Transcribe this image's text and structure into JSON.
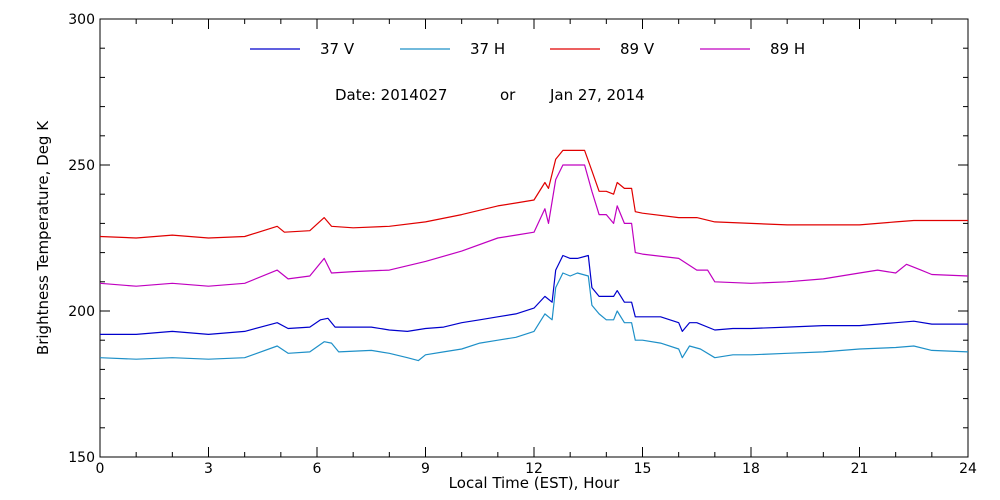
{
  "chart_data": {
    "type": "line",
    "title": "",
    "date_note": {
      "date_label": "Date: 2014027",
      "or_label": "or",
      "date_text": "Jan 27, 2014"
    },
    "xlabel": "Local Time (EST), Hour",
    "ylabel": "Brightness Temperature, Deg K",
    "xlim": [
      0,
      24
    ],
    "ylim": [
      150,
      300
    ],
    "x_ticks": [
      "0",
      "3",
      "6",
      "9",
      "12",
      "15",
      "18",
      "21",
      "24"
    ],
    "y_ticks": [
      "150",
      "200",
      "250",
      "300"
    ],
    "grid": false,
    "legend_position": "top",
    "series": [
      {
        "name": "37 V",
        "color": "#0000cc",
        "points": [
          [
            0,
            192
          ],
          [
            1,
            192
          ],
          [
            2,
            193
          ],
          [
            3,
            192
          ],
          [
            4,
            193
          ],
          [
            4.9,
            196
          ],
          [
            5.2,
            194
          ],
          [
            5.8,
            194.5
          ],
          [
            6.1,
            197
          ],
          [
            6.3,
            197.5
          ],
          [
            6.5,
            194.5
          ],
          [
            7.5,
            194.5
          ],
          [
            8,
            193.5
          ],
          [
            8.5,
            193
          ],
          [
            9,
            194
          ],
          [
            9.5,
            194.5
          ],
          [
            10,
            196
          ],
          [
            10.5,
            197
          ],
          [
            11,
            198
          ],
          [
            11.5,
            199
          ],
          [
            12,
            201
          ],
          [
            12.3,
            205
          ],
          [
            12.5,
            203
          ],
          [
            12.6,
            214
          ],
          [
            12.8,
            219
          ],
          [
            13,
            218
          ],
          [
            13.2,
            218
          ],
          [
            13.5,
            219
          ],
          [
            13.6,
            208
          ],
          [
            13.8,
            205
          ],
          [
            14,
            205
          ],
          [
            14.2,
            205
          ],
          [
            14.3,
            207
          ],
          [
            14.5,
            203
          ],
          [
            14.7,
            203
          ],
          [
            14.8,
            198
          ],
          [
            15,
            198
          ],
          [
            15.5,
            198
          ],
          [
            16,
            196
          ],
          [
            16.1,
            193
          ],
          [
            16.3,
            196
          ],
          [
            16.5,
            196
          ],
          [
            17,
            193.5
          ],
          [
            17.5,
            194
          ],
          [
            18,
            194
          ],
          [
            19,
            194.5
          ],
          [
            20,
            195
          ],
          [
            21,
            195
          ],
          [
            22,
            196
          ],
          [
            22.5,
            196.5
          ],
          [
            23,
            195.5
          ],
          [
            24,
            195.5
          ]
        ]
      },
      {
        "name": "37 H",
        "color": "#1e90c8",
        "points": [
          [
            0,
            184
          ],
          [
            1,
            183.5
          ],
          [
            2,
            184
          ],
          [
            3,
            183.5
          ],
          [
            4,
            184
          ],
          [
            4.9,
            188
          ],
          [
            5.2,
            185.5
          ],
          [
            5.8,
            186
          ],
          [
            6.2,
            189.5
          ],
          [
            6.4,
            189
          ],
          [
            6.6,
            186
          ],
          [
            7.5,
            186.5
          ],
          [
            8,
            185.5
          ],
          [
            8.5,
            184
          ],
          [
            8.8,
            183
          ],
          [
            9,
            185
          ],
          [
            9.5,
            186
          ],
          [
            10,
            187
          ],
          [
            10.5,
            189
          ],
          [
            11,
            190
          ],
          [
            11.5,
            191
          ],
          [
            12,
            193
          ],
          [
            12.3,
            199
          ],
          [
            12.5,
            197
          ],
          [
            12.6,
            208
          ],
          [
            12.8,
            213
          ],
          [
            13,
            212
          ],
          [
            13.2,
            213
          ],
          [
            13.5,
            212
          ],
          [
            13.6,
            202
          ],
          [
            13.8,
            199
          ],
          [
            14,
            197
          ],
          [
            14.2,
            197
          ],
          [
            14.3,
            200
          ],
          [
            14.5,
            196
          ],
          [
            14.7,
            196
          ],
          [
            14.8,
            190
          ],
          [
            15,
            190
          ],
          [
            15.5,
            189
          ],
          [
            16,
            187
          ],
          [
            16.1,
            184
          ],
          [
            16.3,
            188
          ],
          [
            16.6,
            187
          ],
          [
            17,
            184
          ],
          [
            17.5,
            185
          ],
          [
            18,
            185
          ],
          [
            19,
            185.5
          ],
          [
            20,
            186
          ],
          [
            21,
            187
          ],
          [
            22,
            187.5
          ],
          [
            22.5,
            188
          ],
          [
            23,
            186.5
          ],
          [
            24,
            186
          ]
        ]
      },
      {
        "name": "89 V",
        "color": "#e00000",
        "points": [
          [
            0,
            225.5
          ],
          [
            1,
            225
          ],
          [
            2,
            226
          ],
          [
            3,
            225
          ],
          [
            4,
            225.5
          ],
          [
            4.9,
            229
          ],
          [
            5.1,
            227
          ],
          [
            5.8,
            227.5
          ],
          [
            6.2,
            232
          ],
          [
            6.4,
            229
          ],
          [
            7,
            228.5
          ],
          [
            8,
            229
          ],
          [
            9,
            230.5
          ],
          [
            10,
            233
          ],
          [
            11,
            236
          ],
          [
            11.5,
            237
          ],
          [
            12,
            238
          ],
          [
            12.3,
            244
          ],
          [
            12.4,
            242
          ],
          [
            12.6,
            252
          ],
          [
            12.8,
            255
          ],
          [
            13,
            255
          ],
          [
            13.4,
            255
          ],
          [
            13.6,
            248
          ],
          [
            13.8,
            241
          ],
          [
            14,
            241
          ],
          [
            14.2,
            240
          ],
          [
            14.3,
            244
          ],
          [
            14.5,
            242
          ],
          [
            14.7,
            242
          ],
          [
            14.8,
            234
          ],
          [
            15,
            233.5
          ],
          [
            16,
            232
          ],
          [
            16.5,
            232
          ],
          [
            17,
            230.5
          ],
          [
            18,
            230
          ],
          [
            19,
            229.5
          ],
          [
            20,
            229.5
          ],
          [
            21,
            229.5
          ],
          [
            22,
            230.5
          ],
          [
            22.5,
            231
          ],
          [
            23,
            231
          ],
          [
            24,
            231
          ]
        ]
      },
      {
        "name": "89 H",
        "color": "#c000c0",
        "points": [
          [
            0,
            209.5
          ],
          [
            1,
            208.5
          ],
          [
            2,
            209.5
          ],
          [
            3,
            208.5
          ],
          [
            4,
            209.5
          ],
          [
            4.9,
            214
          ],
          [
            5.2,
            211
          ],
          [
            5.8,
            212
          ],
          [
            6.2,
            218
          ],
          [
            6.4,
            213
          ],
          [
            7,
            213.5
          ],
          [
            8,
            214
          ],
          [
            9,
            217
          ],
          [
            10,
            220.5
          ],
          [
            11,
            225
          ],
          [
            11.5,
            226
          ],
          [
            12,
            227
          ],
          [
            12.3,
            235
          ],
          [
            12.4,
            230
          ],
          [
            12.6,
            245
          ],
          [
            12.8,
            250
          ],
          [
            13,
            250
          ],
          [
            13.4,
            250
          ],
          [
            13.6,
            241
          ],
          [
            13.8,
            233
          ],
          [
            14,
            233
          ],
          [
            14.2,
            230
          ],
          [
            14.3,
            236
          ],
          [
            14.5,
            230
          ],
          [
            14.7,
            230
          ],
          [
            14.8,
            220
          ],
          [
            15,
            219.5
          ],
          [
            16,
            218
          ],
          [
            16.5,
            214
          ],
          [
            16.8,
            214
          ],
          [
            17,
            210
          ],
          [
            18,
            209.5
          ],
          [
            19,
            210
          ],
          [
            20,
            211
          ],
          [
            21,
            213
          ],
          [
            21.5,
            214
          ],
          [
            22,
            213
          ],
          [
            22.3,
            216
          ],
          [
            22.7,
            214
          ],
          [
            23,
            212.5
          ],
          [
            24,
            212
          ]
        ]
      }
    ]
  }
}
